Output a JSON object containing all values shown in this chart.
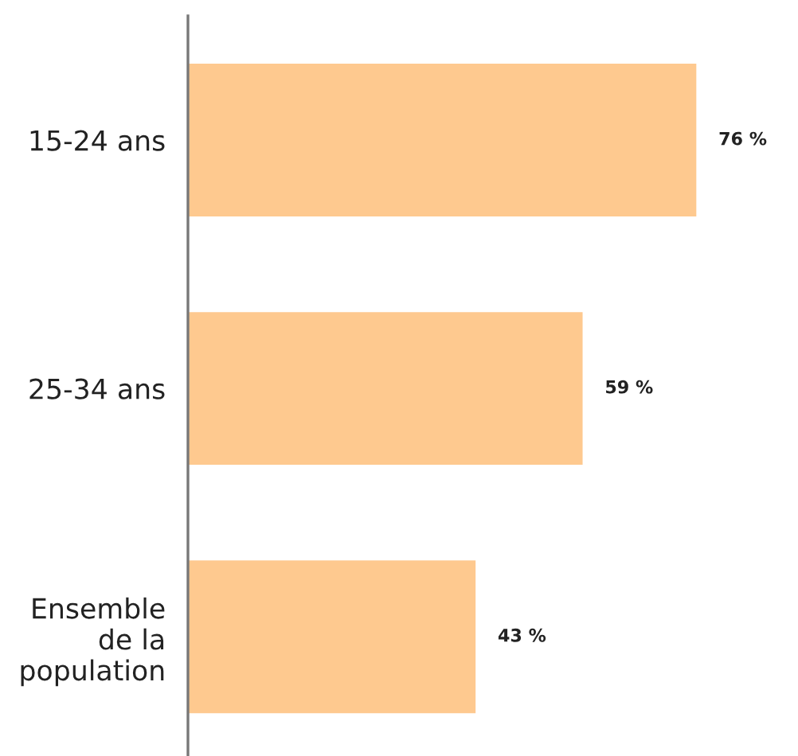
{
  "chart_data": {
    "type": "bar",
    "orientation": "horizontal",
    "categories": [
      "15-24 ans",
      "25-34 ans",
      "Ensemble\nde la\npopulation"
    ],
    "values": [
      76,
      59,
      43
    ],
    "color": "#fec98f",
    "value_labels": [
      "76 %",
      "59 %",
      "43 %"
    ],
    "grid": false,
    "legend": false
  }
}
